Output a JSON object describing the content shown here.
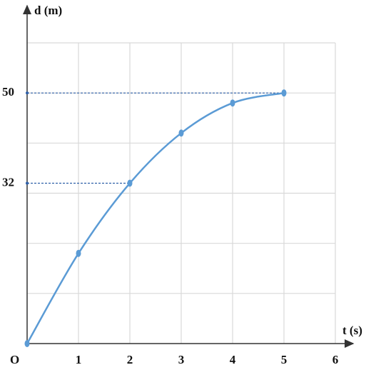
{
  "chart_data": {
    "type": "line",
    "xlabel": "t (s)",
    "ylabel": "d (m)",
    "origin_label": "O",
    "x": [
      0,
      1,
      2,
      3,
      4,
      5
    ],
    "series": [
      {
        "color": "#5b9bd5",
        "values": [
          0,
          18,
          32,
          42,
          48,
          50
        ]
      }
    ],
    "xlim": [
      0,
      6
    ],
    "ylim": [
      0,
      60
    ],
    "xticks": [
      1,
      2,
      3,
      4,
      5,
      6
    ],
    "yticks": [
      32,
      50
    ],
    "ygrid": [
      10,
      20,
      30,
      40,
      50,
      60
    ],
    "grid": true,
    "guide_points": [
      2,
      5
    ]
  }
}
